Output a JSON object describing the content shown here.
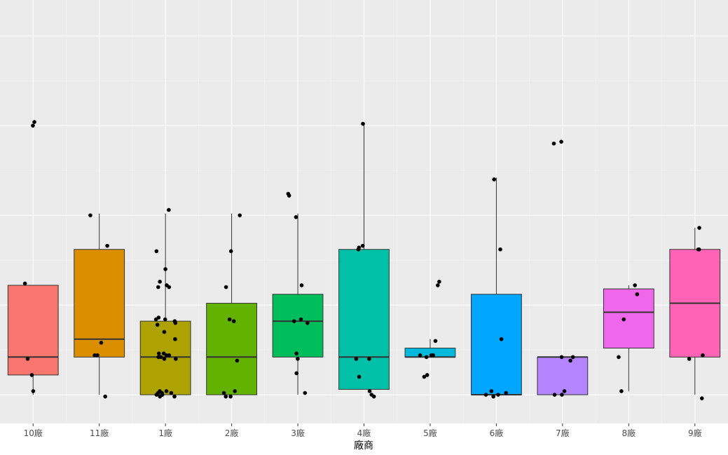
{
  "chart_data": {
    "type": "boxplot",
    "xlabel": "廠商",
    "ylabel": "",
    "ylim": [
      -0.16,
      2.2
    ],
    "grid": true,
    "legend": "none",
    "categories": [
      "10廠",
      "11廠",
      "1廠",
      "2廠",
      "3廠",
      "4廠",
      "5廠",
      "6廠",
      "7廠",
      "8廠",
      "9廠"
    ],
    "colors": [
      "#F8766D",
      "#DB8E00",
      "#AEA200",
      "#64B200",
      "#00BD5C",
      "#00C1A7",
      "#00BADE",
      "#00A6FF",
      "#B385FF",
      "#EF67EB",
      "#FF63B6"
    ],
    "boxes": [
      {
        "category": "10廠",
        "lower": 0.0,
        "q1": 0.11,
        "median": 0.21,
        "q3": 0.61,
        "upper": 0.61
      },
      {
        "category": "11廠",
        "lower": 0.0,
        "q1": 0.21,
        "median": 0.31,
        "q3": 0.81,
        "upper": 1.01
      },
      {
        "category": "1廠",
        "lower": 0.0,
        "q1": 0.0,
        "median": 0.21,
        "q3": 0.41,
        "upper": 1.01
      },
      {
        "category": "2廠",
        "lower": 0.0,
        "q1": 0.0,
        "median": 0.21,
        "q3": 0.51,
        "upper": 1.01
      },
      {
        "category": "3廠",
        "lower": 0.0,
        "q1": 0.21,
        "median": 0.41,
        "q3": 0.56,
        "upper": 1.01
      },
      {
        "category": "4廠",
        "lower": 0.03,
        "q1": 0.03,
        "median": 0.21,
        "q3": 0.81,
        "upper": 1.51
      },
      {
        "category": "5廠",
        "lower": 0.21,
        "q1": 0.21,
        "median": 0.21,
        "q3": 0.26,
        "upper": 0.31
      },
      {
        "category": "6廠",
        "lower": 0.0,
        "q1": 0.0,
        "median": 0.0,
        "q3": 0.56,
        "upper": 1.21
      },
      {
        "category": "7廠",
        "lower": 0.0,
        "q1": 0.0,
        "median": 0.21,
        "q3": 0.21,
        "upper": 0.21
      },
      {
        "category": "8廠",
        "lower": 0.02,
        "q1": 0.26,
        "median": 0.46,
        "q3": 0.59,
        "upper": 0.61
      },
      {
        "category": "9廠",
        "lower": 0.0,
        "q1": 0.21,
        "median": 0.51,
        "q3": 0.81,
        "upper": 0.93
      }
    ],
    "points": [
      {
        "category": "10廠",
        "y": [
          1.5,
          1.52,
          0.62,
          0.2,
          0.11,
          0.02
        ]
      },
      {
        "category": "11廠",
        "y": [
          1.0,
          0.83,
          0.29,
          0.22,
          0.22,
          -0.01
        ]
      },
      {
        "category": "1廠",
        "y": [
          1.03,
          0.8,
          0.7,
          0.63,
          0.6,
          0.6,
          0.61,
          0.42,
          0.43,
          0.42,
          0.41,
          0.4,
          0.39,
          0.35,
          0.31,
          0.23,
          0.23,
          0.22,
          0.22,
          0.21,
          0.21,
          0.2,
          0.2,
          0.02,
          0.02,
          0.01,
          0.01,
          0.01,
          0.0,
          0.0,
          0.0,
          -0.01,
          -0.01
        ]
      },
      {
        "category": "2廠",
        "y": [
          1.0,
          0.8,
          0.6,
          0.41,
          0.42,
          0.19,
          0.02,
          0.01,
          -0.01,
          -0.01
        ]
      },
      {
        "category": "3廠",
        "y": [
          1.11,
          1.12,
          0.99,
          0.61,
          0.42,
          0.4,
          0.41,
          0.23,
          0.2,
          0.12,
          0.01
        ]
      },
      {
        "category": "4廠",
        "y": [
          1.51,
          0.83,
          0.82,
          0.81,
          0.2,
          0.2,
          0.1,
          0.02,
          0.0,
          -0.01
        ]
      },
      {
        "category": "5廠",
        "y": [
          0.63,
          0.61,
          0.3,
          0.22,
          0.22,
          0.22,
          0.21,
          0.11,
          0.1
        ]
      },
      {
        "category": "6廠",
        "y": [
          1.2,
          0.81,
          0.31,
          0.02,
          0.01,
          0.0,
          -0.01,
          0.0
        ]
      },
      {
        "category": "7廠",
        "y": [
          1.41,
          1.4,
          0.21,
          0.21,
          0.19,
          0.02,
          0.0,
          0.0
        ]
      },
      {
        "category": "8廠",
        "y": [
          0.61,
          0.56,
          0.42,
          0.21,
          0.02
        ]
      },
      {
        "category": "9廠",
        "y": [
          0.93,
          0.81,
          0.81,
          0.22,
          0.2,
          -0.02
        ]
      }
    ]
  }
}
